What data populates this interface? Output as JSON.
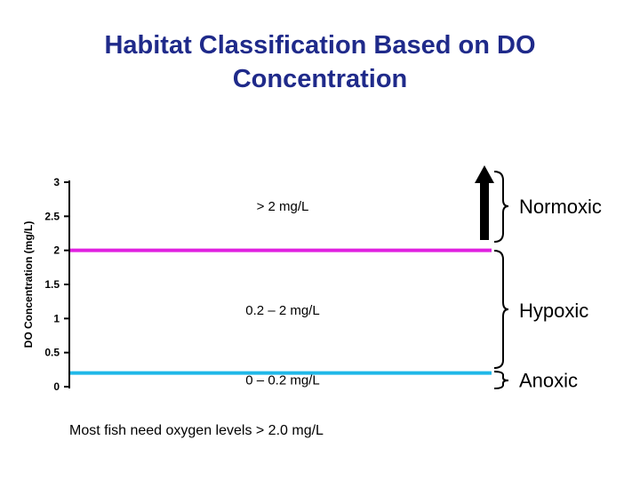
{
  "title": "Habitat Classification Based on DO Concentration",
  "chart_data": {
    "type": "line",
    "ylabel": "DO Concentration (mg/L)",
    "ylim": [
      0,
      3
    ],
    "yticks": [
      "0",
      "0.5",
      "1",
      "1.5",
      "2",
      "2.5",
      "3"
    ],
    "threshold_lines": [
      {
        "value": 2,
        "color": "#e020e0"
      },
      {
        "value": 0.2,
        "color": "#20b8e8"
      }
    ],
    "ranges": [
      {
        "label": "> 2 mg/L",
        "habitat": "Normoxic",
        "y_mid": 2.65,
        "habitat_color": "#0f7a0f"
      },
      {
        "label": "0.2 – 2 mg/L",
        "habitat": "Hypoxic",
        "y_mid": 1.12,
        "habitat_color": "#000000"
      },
      {
        "label": "0 – 0.2 mg/L",
        "habitat": "Anoxic",
        "y_mid": 0.1,
        "habitat_color": "#000000"
      }
    ]
  },
  "note": "Most fish need oxygen levels > 2.0 mg/L",
  "icons": [
    "up-arrow-icon",
    "brace-icon"
  ]
}
